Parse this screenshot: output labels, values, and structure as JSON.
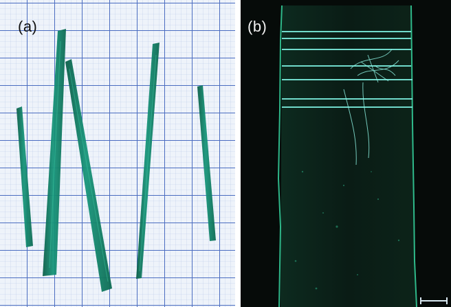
{
  "figure": {
    "panels": [
      {
        "label": "(a)",
        "content": "photo-of-green-strips-on-graph-paper",
        "colors": {
          "paper": "#eef3fa",
          "grid": "#3f63b8",
          "strip": "#138a6c",
          "strip_edge": "#0b5e48"
        }
      },
      {
        "label": "(b)",
        "content": "dark-field-micrograph-of-single-strip",
        "colors": {
          "background": "#060b09",
          "strip_body": "#0b1a14",
          "edge_glow": "#36d6a0",
          "line_glow": "#7df0e0"
        },
        "scale_bar": {
          "color": "#d8e8f0"
        }
      }
    ]
  }
}
